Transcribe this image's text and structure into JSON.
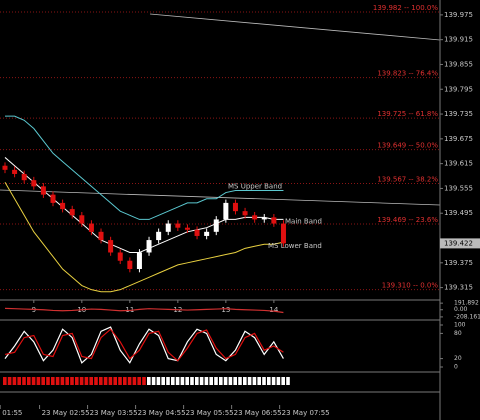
{
  "chart_data": [
    {
      "type": "candlestick",
      "x": [
        0,
        1,
        2,
        3,
        4,
        5,
        6,
        7,
        8,
        9,
        10,
        11,
        12,
        13,
        14,
        15,
        16,
        17,
        18,
        19,
        20,
        21,
        22,
        23,
        24,
        25,
        26,
        27,
        28,
        29
      ],
      "open": [
        139.61,
        139.6,
        139.59,
        139.575,
        139.56,
        139.54,
        139.52,
        139.505,
        139.49,
        139.47,
        139.45,
        139.43,
        139.4,
        139.38,
        139.36,
        139.4,
        139.43,
        139.45,
        139.47,
        139.46,
        139.455,
        139.44,
        139.45,
        139.48,
        139.52,
        139.5,
        139.49,
        139.48,
        139.485,
        139.47
      ],
      "high": [
        139.618,
        139.608,
        139.598,
        139.583,
        139.568,
        139.548,
        139.528,
        139.513,
        139.498,
        139.478,
        139.458,
        139.438,
        139.408,
        139.388,
        139.408,
        139.438,
        139.458,
        139.478,
        139.478,
        139.468,
        139.463,
        139.458,
        139.488,
        139.528,
        139.528,
        139.508,
        139.498,
        139.493,
        139.493,
        139.478
      ],
      "low": [
        139.592,
        139.582,
        139.567,
        139.552,
        139.532,
        139.512,
        139.497,
        139.482,
        139.462,
        139.442,
        139.422,
        139.392,
        139.372,
        139.352,
        139.352,
        139.392,
        139.422,
        139.442,
        139.452,
        139.447,
        139.432,
        139.432,
        139.442,
        139.472,
        139.492,
        139.482,
        139.472,
        139.472,
        139.462,
        139.414
      ],
      "close": [
        139.6,
        139.59,
        139.575,
        139.56,
        139.54,
        139.52,
        139.505,
        139.49,
        139.47,
        139.45,
        139.43,
        139.4,
        139.38,
        139.36,
        139.4,
        139.43,
        139.45,
        139.47,
        139.46,
        139.455,
        139.44,
        139.45,
        139.48,
        139.52,
        139.5,
        139.49,
        139.48,
        139.485,
        139.47,
        139.422
      ],
      "up_color": "#ffffff",
      "down_color": "#e01010",
      "xlim": [
        -0.52,
        45.3
      ],
      "ylim": [
        139.285,
        140.011
      ],
      "yticks": [
        139.975,
        139.915,
        139.855,
        139.795,
        139.735,
        139.675,
        139.615,
        139.555,
        139.495,
        139.375,
        139.315
      ],
      "xticks": [
        {
          "value": 3,
          "label": "9"
        },
        {
          "value": 8,
          "label": "10"
        },
        {
          "value": 13,
          "label": "11"
        },
        {
          "value": 18,
          "label": "12"
        },
        {
          "value": 23,
          "label": "13"
        },
        {
          "value": 28,
          "label": "14"
        }
      ],
      "time_ticks": [
        {
          "value": -0.5,
          "label": "01:55"
        },
        {
          "value": 3.6,
          "label": "23 May 02:55"
        },
        {
          "value": 8.6,
          "label": "23 May 03:55"
        },
        {
          "value": 13.6,
          "label": "23 May 04:55"
        },
        {
          "value": 18.6,
          "label": "23 May 05:55"
        },
        {
          "value": 23.6,
          "label": "23 May 06:55"
        },
        {
          "value": 28.6,
          "label": "23 May 07:55"
        }
      ],
      "current_price": 139.422,
      "fib_levels": [
        {
          "value": 139.982,
          "label": "139.982 -- 100.0%"
        },
        {
          "value": 139.823,
          "label": "139.823 -- 76.4%"
        },
        {
          "value": 139.725,
          "label": "139.725 -- 61.8%"
        },
        {
          "value": 139.649,
          "label": "139.649 -- 50.0%"
        },
        {
          "value": 139.567,
          "label": "139.567 -- 38.2%"
        },
        {
          "value": 139.469,
          "label": "139.469 -- 23.6%"
        },
        {
          "value": 139.31,
          "label": "139.310 -- 0.0%"
        }
      ],
      "series": [
        {
          "name": "MS Upper Band",
          "color": "#5bc8d0",
          "values": [
            139.73,
            139.73,
            139.72,
            139.7,
            139.67,
            139.64,
            139.62,
            139.6,
            139.58,
            139.56,
            139.54,
            139.52,
            139.5,
            139.49,
            139.48,
            139.48,
            139.49,
            139.5,
            139.51,
            139.52,
            139.52,
            139.53,
            139.53,
            139.545,
            139.55,
            139.55,
            139.55,
            139.55,
            139.55,
            139.55
          ]
        },
        {
          "name": "Main Band",
          "color": "#ffffff",
          "values": [
            139.63,
            139.61,
            139.59,
            139.57,
            139.55,
            139.53,
            139.51,
            139.49,
            139.47,
            139.45,
            139.43,
            139.42,
            139.41,
            139.4,
            139.4,
            139.41,
            139.42,
            139.43,
            139.44,
            139.45,
            139.455,
            139.46,
            139.47,
            139.48,
            139.48,
            139.485,
            139.485,
            139.485,
            139.48,
            139.48
          ]
        },
        {
          "name": "MS Lower Band",
          "color": "#e8d040",
          "values": [
            139.57,
            139.53,
            139.49,
            139.45,
            139.42,
            139.39,
            139.36,
            139.34,
            139.32,
            139.31,
            139.305,
            139.305,
            139.31,
            139.32,
            139.33,
            139.34,
            139.35,
            139.36,
            139.37,
            139.375,
            139.38,
            139.385,
            139.39,
            139.395,
            139.4,
            139.41,
            139.415,
            139.42,
            139.42,
            139.425
          ]
        }
      ]
    },
    {
      "type": "line",
      "ylim": [
        -240,
        225
      ],
      "yticks": [
        191.892,
        {
          "value": 0,
          "label": "0.00"
        },
        -208.161
      ],
      "series": [
        {
          "color": "#d03030",
          "values": [
            40,
            30,
            20,
            10,
            0,
            -20,
            -30,
            -20,
            0,
            20,
            10,
            -10,
            -30,
            -20,
            10,
            30,
            20,
            10,
            0,
            -10,
            0,
            10,
            20,
            30,
            10,
            0,
            -10,
            -20,
            -40,
            -80
          ]
        }
      ]
    },
    {
      "type": "line",
      "ylim": [
        0,
        100
      ],
      "yticks": [
        100,
        80,
        20,
        0
      ],
      "series": [
        {
          "color": "#ffffff",
          "values": [
            20,
            50,
            85,
            60,
            15,
            40,
            90,
            70,
            10,
            30,
            85,
            95,
            40,
            10,
            55,
            90,
            75,
            20,
            15,
            60,
            90,
            80,
            30,
            15,
            40,
            85,
            70,
            30,
            60,
            20
          ]
        },
        {
          "color": "#e01010",
          "values": [
            30,
            35,
            70,
            75,
            30,
            25,
            75,
            80,
            25,
            20,
            70,
            90,
            60,
            20,
            40,
            80,
            85,
            35,
            15,
            45,
            80,
            88,
            45,
            20,
            30,
            70,
            80,
            40,
            50,
            35
          ]
        }
      ]
    }
  ]
}
